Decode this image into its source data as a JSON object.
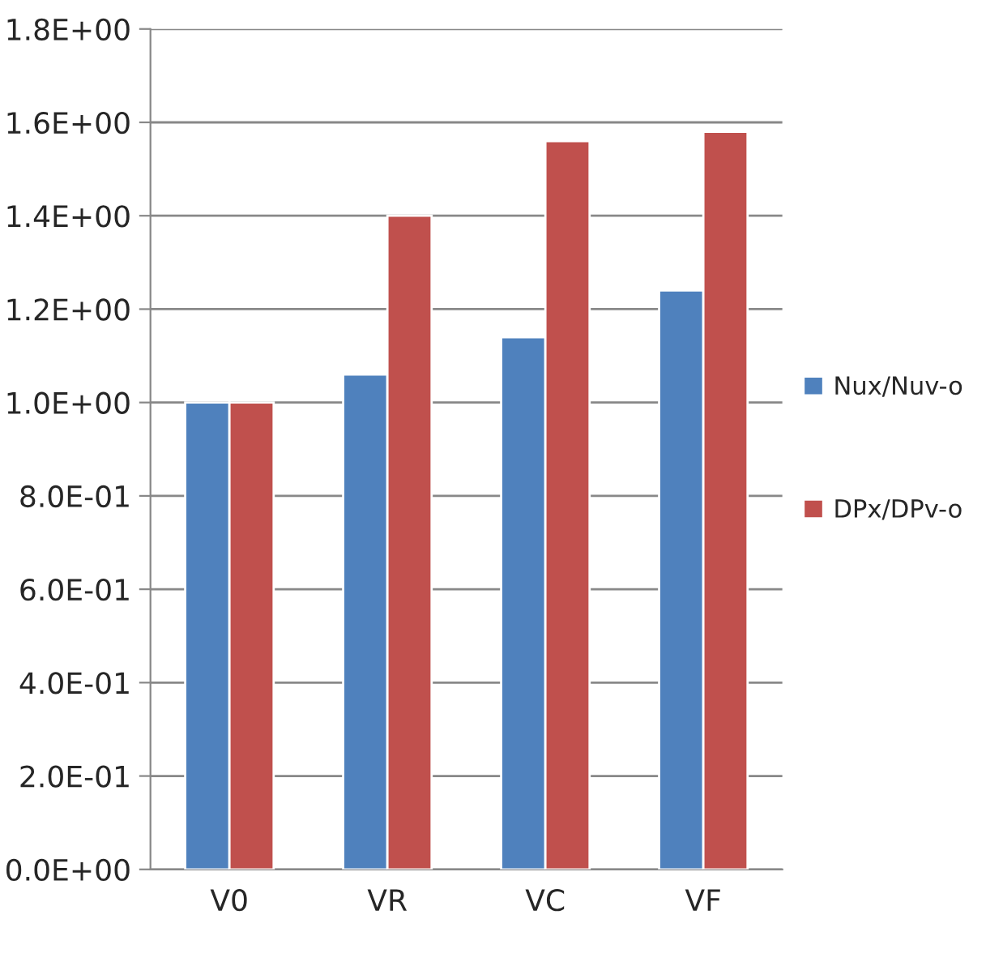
{
  "chart_data": {
    "type": "bar",
    "categories": [
      "V0",
      "VR",
      "VC",
      "VF"
    ],
    "series": [
      {
        "name": "Nux/Nuv-o",
        "color": "#4f81bd",
        "values": [
          1.0,
          1.06,
          1.14,
          1.24
        ]
      },
      {
        "name": "DPx/DPv-o",
        "color": "#c0504d",
        "values": [
          1.0,
          1.4,
          1.56,
          1.58
        ]
      }
    ],
    "ylim": [
      0,
      1.8
    ],
    "yticks": [
      {
        "value": 0,
        "label": "0.0E+00"
      },
      {
        "value": 0.2,
        "label": "2.0E-01"
      },
      {
        "value": 0.4,
        "label": "4.0E-01"
      },
      {
        "value": 0.6,
        "label": "6.0E-01"
      },
      {
        "value": 0.8,
        "label": "8.0E-01"
      },
      {
        "value": 1.0,
        "label": "1.0E+00"
      },
      {
        "value": 1.2,
        "label": "1.2E+00"
      },
      {
        "value": 1.4,
        "label": "1.4E+00"
      },
      {
        "value": 1.6,
        "label": "1.6E+00"
      },
      {
        "value": 1.8,
        "label": "1.8E+00"
      }
    ],
    "grid": "y",
    "legend": "right"
  }
}
